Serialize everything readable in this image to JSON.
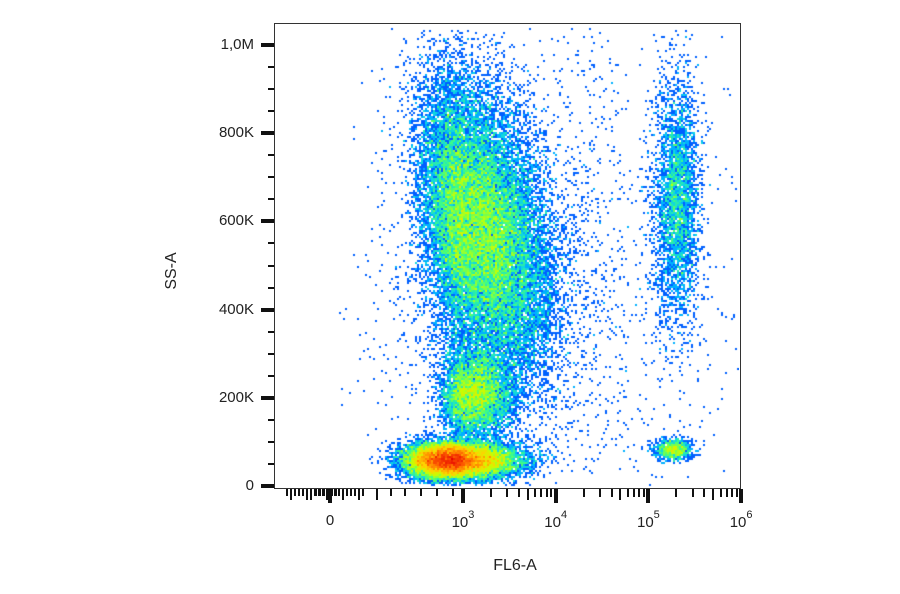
{
  "chart_data": {
    "type": "scatter",
    "subtype": "flow-cytometry-density-dot-plot",
    "title": "",
    "xlabel": "FL6-A",
    "ylabel": "SS-A",
    "x_scale": "biexponential",
    "y_scale": "linear",
    "xlim": [
      "below 0",
      1000000
    ],
    "ylim": [
      0,
      1050000
    ],
    "grid": false,
    "legend": null,
    "x_ticks": [
      {
        "label": "0",
        "value": 0,
        "base": "0",
        "exp": ""
      },
      {
        "label": "10^3",
        "value": 1000,
        "base": "10",
        "exp": "3"
      },
      {
        "label": "10^4",
        "value": 10000,
        "base": "10",
        "exp": "4"
      },
      {
        "label": "10^5",
        "value": 100000,
        "base": "10",
        "exp": "5"
      },
      {
        "label": "10^6",
        "value": 1000000,
        "base": "10",
        "exp": "6"
      }
    ],
    "y_ticks": [
      {
        "label": "0",
        "value": 0
      },
      {
        "label": "200K",
        "value": 200000
      },
      {
        "label": "400K",
        "value": 400000
      },
      {
        "label": "600K",
        "value": 600000
      },
      {
        "label": "800K",
        "value": 800000
      },
      {
        "label": "1,0M",
        "value": 1000000
      }
    ],
    "colormap": [
      "#0000c8",
      "#0050ff",
      "#00c8ff",
      "#40ff80",
      "#c8ff00",
      "#ffd200",
      "#ff6400",
      "#e60000"
    ],
    "populations": [
      {
        "name": "low-SSC dense cluster",
        "fl6_center": 700,
        "ssc_center": 60000,
        "fl6_spread_decades": 0.35,
        "ssc_spread": 20000,
        "peak_density": "red",
        "relative_events": 0.3
      },
      {
        "name": "high-SSC main population",
        "fl6_center": 1500,
        "ssc_center": 580000,
        "fl6_spread_decades": 0.35,
        "ssc_spread": 160000,
        "peak_density": "yellow-green",
        "relative_events": 0.45
      },
      {
        "name": "mid-SSC bridge",
        "fl6_center": 1300,
        "ssc_center": 210000,
        "fl6_spread_decades": 0.2,
        "ssc_spread": 50000,
        "peak_density": "green",
        "relative_events": 0.1
      },
      {
        "name": "bright FL6 high-SSC",
        "fl6_center": 200000,
        "ssc_center": 650000,
        "fl6_spread_decades": 0.12,
        "ssc_spread": 140000,
        "peak_density": "blue",
        "relative_events": 0.06
      },
      {
        "name": "bright FL6 low-SSC",
        "fl6_center": 180000,
        "ssc_center": 85000,
        "fl6_spread_decades": 0.1,
        "ssc_spread": 12000,
        "peak_density": "cyan",
        "relative_events": 0.015
      },
      {
        "name": "sparse background",
        "fl6_center": 5000,
        "ssc_center": 500000,
        "fl6_spread_decades": 1.0,
        "ssc_spread": 300000,
        "peak_density": "blue",
        "relative_events": 0.04
      }
    ]
  },
  "axes": {
    "y_title": "SS-A",
    "x_title": "FL6-A"
  }
}
